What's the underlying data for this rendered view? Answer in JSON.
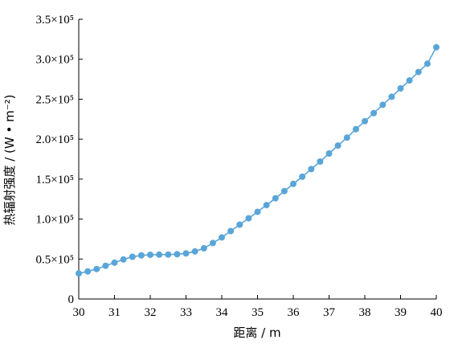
{
  "chart_data": {
    "type": "line",
    "xlabel": "距离 / m",
    "ylabel": "热辐射强度 / (W • m⁻²)",
    "xlim": [
      30,
      40
    ],
    "ylim": [
      0,
      350000
    ],
    "xticks": [
      30,
      31,
      32,
      33,
      34,
      35,
      36,
      37,
      38,
      39,
      40
    ],
    "yticks": [
      {
        "value": 0,
        "label": "0"
      },
      {
        "value": 50000,
        "label": "0.5×10⁵"
      },
      {
        "value": 100000,
        "label": "1.0×10⁵"
      },
      {
        "value": 150000,
        "label": "1.5×10⁵"
      },
      {
        "value": 200000,
        "label": "2.0×10⁵"
      },
      {
        "value": 250000,
        "label": "2.5×10⁵"
      },
      {
        "value": 300000,
        "label": "3.0×10⁵"
      },
      {
        "value": 350000,
        "label": "3.5×10⁵"
      }
    ],
    "grid": false,
    "series": [
      {
        "color": "#5aa5d8",
        "x": [
          30.0,
          30.25,
          30.5,
          30.75,
          31.0,
          31.25,
          31.5,
          31.75,
          32.0,
          32.25,
          32.5,
          32.75,
          33.0,
          33.25,
          33.5,
          33.75,
          34.0,
          34.25,
          34.5,
          34.75,
          35.0,
          35.25,
          35.5,
          35.75,
          36.0,
          36.25,
          36.5,
          36.75,
          37.0,
          37.25,
          37.5,
          37.75,
          38.0,
          38.25,
          38.5,
          38.75,
          39.0,
          39.25,
          39.5,
          39.75,
          40.0
        ],
        "y": [
          32000,
          34500,
          37500,
          41500,
          45500,
          49500,
          52800,
          54600,
          55300,
          55500,
          55600,
          56000,
          57000,
          59500,
          63500,
          70000,
          77000,
          85000,
          93000,
          101000,
          109000,
          117500,
          126000,
          135000,
          144000,
          153000,
          162500,
          172000,
          182000,
          192000,
          202000,
          212500,
          222500,
          232500,
          243000,
          253000,
          263500,
          273500,
          284000,
          294500,
          315000
        ]
      }
    ]
  }
}
